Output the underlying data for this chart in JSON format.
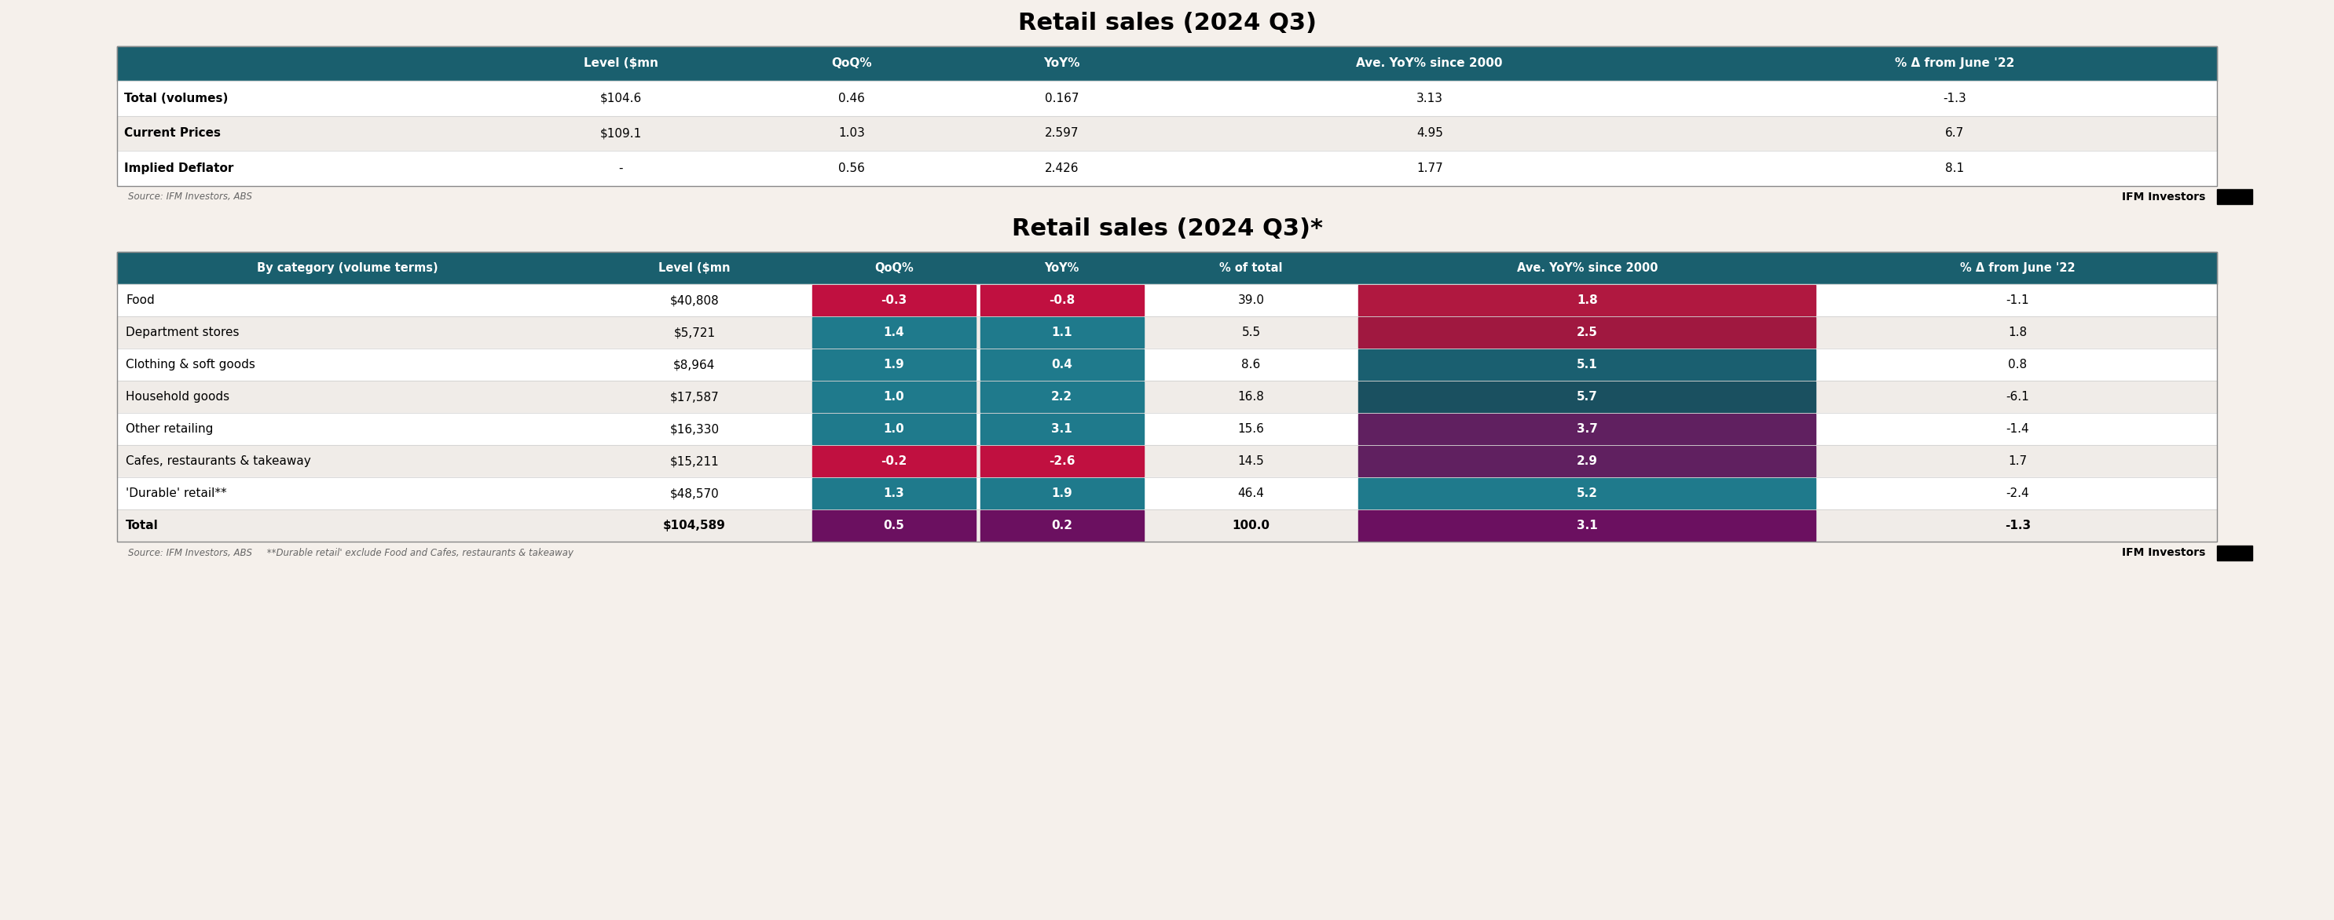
{
  "title1": "Retail sales (2024 Q3)",
  "title2": "Retail sales (2024 Q3)*",
  "source1": "Source: IFM Investors, ABS",
  "source2": "Source: IFM Investors, ABS     **Durable retail' exclude Food and Cafes, restaurants & takeaway",
  "brand": "IFM Investors",
  "table1_headers": [
    "",
    "Level ($mn",
    "QoQ%",
    "YoY%",
    "Ave. YoY% since 2000",
    "% Δ from June '22"
  ],
  "table1_rows": [
    [
      "Total (volumes)",
      "$104.6",
      "0.46",
      "0.167",
      "3.13",
      "-1.3"
    ],
    [
      "Current Prices",
      "$109.1",
      "1.03",
      "2.597",
      "4.95",
      "6.7"
    ],
    [
      "Implied Deflator",
      "-",
      "0.56",
      "2.426",
      "1.77",
      "8.1"
    ]
  ],
  "table2_headers": [
    "By category (volume terms)",
    "Level ($mn",
    "QoQ%",
    "YoY%",
    "% of total",
    "Ave. YoY% since 2000",
    "% Δ from June '22"
  ],
  "table2_rows": [
    [
      "Food",
      "$40,808",
      "-0.3",
      "-0.8",
      "39.0",
      "1.8",
      "-1.1"
    ],
    [
      "Department stores",
      "$5,721",
      "1.4",
      "1.1",
      "5.5",
      "2.5",
      "1.8"
    ],
    [
      "Clothing & soft goods",
      "$8,964",
      "1.9",
      "0.4",
      "8.6",
      "5.1",
      "0.8"
    ],
    [
      "Household goods",
      "$17,587",
      "1.0",
      "2.2",
      "16.8",
      "5.7",
      "-6.1"
    ],
    [
      "Other retailing",
      "$16,330",
      "1.0",
      "3.1",
      "15.6",
      "3.7",
      "-1.4"
    ],
    [
      "Cafes, restaurants & takeaway",
      "$15,211",
      "-0.2",
      "-2.6",
      "14.5",
      "2.9",
      "1.7"
    ],
    [
      "'Durable' retail**",
      "$48,570",
      "1.3",
      "1.9",
      "46.4",
      "5.2",
      "-2.4"
    ],
    [
      "Total",
      "$104,589",
      "0.5",
      "0.2",
      "100.0",
      "3.1",
      "-1.3"
    ]
  ],
  "header_bg": "#1a5f6e",
  "header_fg": "#ffffff",
  "row_bg_light": "#f0ece8",
  "row_bg_white": "#ffffff",
  "total_row_bg": "#f0ece8",
  "color_crimson": "#b0103a",
  "color_teal_dark": "#1a5f6e",
  "color_teal_mid": "#1f7080",
  "color_purple_dark": "#5a1a5a",
  "color_purple_mid": "#7a2060",
  "color_maroon": "#8b1a4a",
  "cell_colors_qoq": [
    "crimson",
    "teal",
    "teal",
    "teal",
    "teal",
    "crimson",
    "teal",
    "purple"
  ],
  "cell_colors_yoy": [
    "crimson",
    "teal",
    "teal",
    "teal",
    "teal",
    "crimson",
    "teal",
    "purple"
  ],
  "cell_colors_ave": [
    "crimson",
    "crimson",
    "teal",
    "teal",
    "purple",
    "purple",
    "teal",
    "purple"
  ],
  "bg_color": "#f5f0eb"
}
